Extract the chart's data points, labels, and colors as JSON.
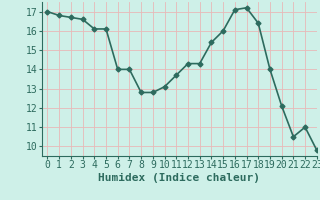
{
  "x": [
    0,
    1,
    2,
    3,
    4,
    5,
    6,
    7,
    8,
    9,
    10,
    11,
    12,
    13,
    14,
    15,
    16,
    17,
    18,
    19,
    20,
    21,
    22,
    23
  ],
  "y": [
    17.0,
    16.8,
    16.7,
    16.6,
    16.1,
    16.1,
    14.0,
    14.0,
    12.8,
    12.8,
    13.1,
    13.7,
    14.3,
    14.3,
    15.4,
    16.0,
    17.1,
    17.2,
    16.4,
    14.0,
    12.1,
    10.5,
    11.0,
    9.8
  ],
  "xlabel": "Humidex (Indice chaleur)",
  "xlim": [
    -0.5,
    23
  ],
  "ylim": [
    9.5,
    17.5
  ],
  "yticks": [
    10,
    11,
    12,
    13,
    14,
    15,
    16,
    17
  ],
  "xticks": [
    0,
    1,
    2,
    3,
    4,
    5,
    6,
    7,
    8,
    9,
    10,
    11,
    12,
    13,
    14,
    15,
    16,
    17,
    18,
    19,
    20,
    21,
    22,
    23
  ],
  "line_color": "#2d6b5e",
  "marker": "D",
  "marker_size": 2.5,
  "bg_color": "#cef0e8",
  "vgrid_color": "#e8b8b8",
  "hgrid_color": "#e8b8b8",
  "axis_color": "#2d6b5e",
  "tick_color": "#2d6b5e",
  "label_color": "#2d6b5e",
  "xlabel_fontsize": 8,
  "tick_fontsize": 7
}
